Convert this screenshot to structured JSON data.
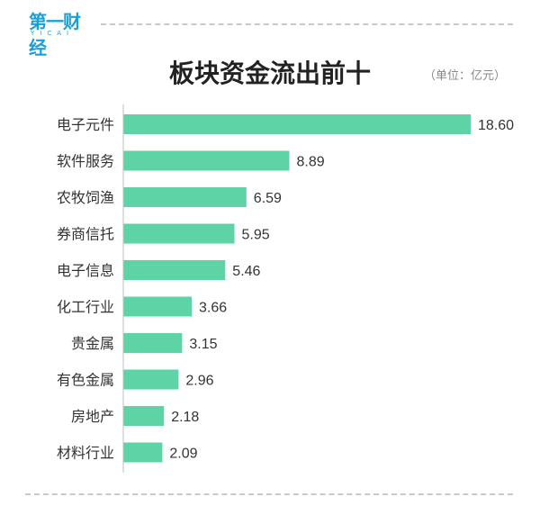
{
  "header": {
    "logo_text": "第一财经",
    "logo_sub": "YICAI"
  },
  "title": "板块资金流出前十",
  "unit_label": "（单位：亿元）",
  "colors": {
    "bar": "#5dd3a6",
    "axis": "#bfbfbf",
    "label": "#333333",
    "value": "#333333",
    "brand": "#1a9fd6"
  },
  "chart_data": {
    "type": "bar",
    "orientation": "horizontal",
    "title": "板块资金流出前十",
    "unit": "亿元",
    "categories": [
      "电子元件",
      "软件服务",
      "农牧饲渔",
      "券商信托",
      "电子信息",
      "化工行业",
      "贵金属",
      "有色金属",
      "房地产",
      "材料行业"
    ],
    "values": [
      18.6,
      8.89,
      6.59,
      5.95,
      5.46,
      3.66,
      3.15,
      2.96,
      2.18,
      2.09
    ],
    "value_labels": [
      "18.60",
      "8.89",
      "6.59",
      "5.95",
      "5.46",
      "3.66",
      "3.15",
      "2.96",
      "2.18",
      "2.09"
    ],
    "xlim": [
      0,
      18.6
    ],
    "grid": false,
    "legend": "none"
  }
}
